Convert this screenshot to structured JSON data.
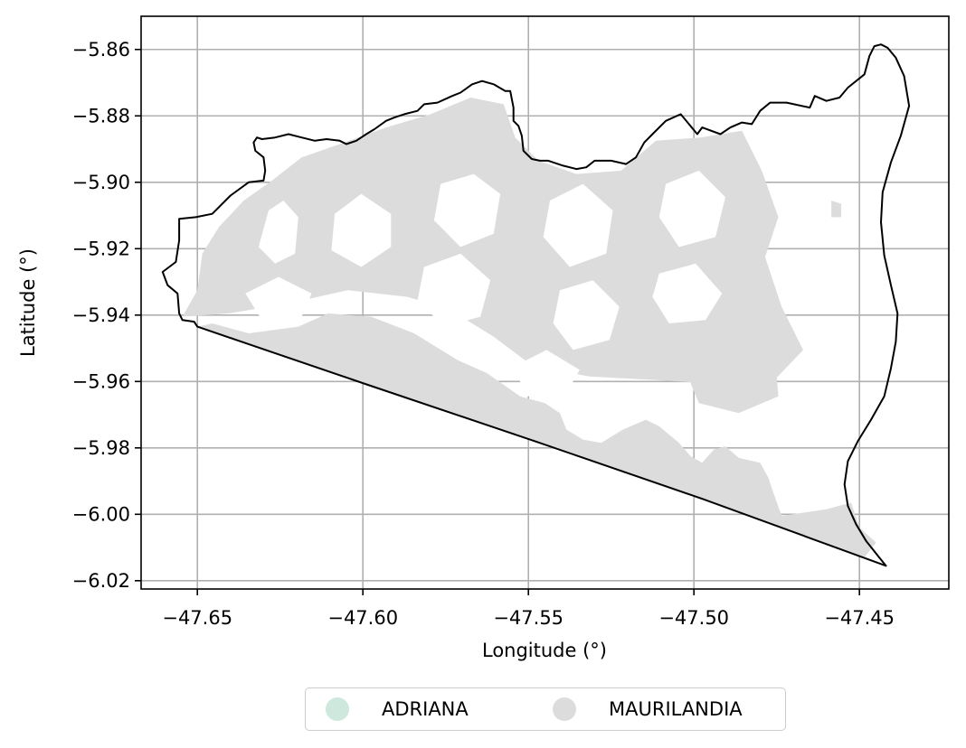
{
  "chart_data": {
    "type": "map",
    "xlabel": "Longitude (°)",
    "ylabel": "Latitude (°)",
    "xlim": [
      -47.667,
      -47.423
    ],
    "ylim": [
      -6.0225,
      -5.85
    ],
    "xticks": [
      -47.65,
      -47.6,
      -47.55,
      -47.5,
      -47.45
    ],
    "xtick_labels": [
      "−47.65",
      "−47.60",
      "−47.55",
      "−47.50",
      "−47.45"
    ],
    "yticks": [
      -5.86,
      -5.88,
      -5.9,
      -5.92,
      -5.94,
      -5.96,
      -5.98,
      -6.0,
      -6.02
    ],
    "ytick_labels": [
      "−5.86",
      "−5.88",
      "−5.90",
      "−5.92",
      "−5.94",
      "−5.96",
      "−5.98",
      "−6.00",
      "−6.02"
    ],
    "grid": true,
    "boundary_color": "#000000",
    "legend_placement": "bottom-center",
    "legend": [
      {
        "label": "ADRIANA",
        "color": "#cfe8de"
      },
      {
        "label": "MAURILANDIA",
        "color": "#dcdcdc"
      }
    ],
    "boundary": [
      [
        -47.65,
        -5.9435
      ],
      [
        -47.5985,
        -5.961
      ],
      [
        -47.548,
        -5.978
      ],
      [
        -47.497,
        -5.9955
      ],
      [
        -47.442,
        -6.0155
      ],
      [
        -47.444,
        -6.013
      ],
      [
        -47.448,
        -6.008
      ],
      [
        -47.451,
        -6.003
      ],
      [
        -47.4535,
        -5.9975
      ],
      [
        -47.4545,
        -5.991
      ],
      [
        -47.4535,
        -5.984
      ],
      [
        -47.4505,
        -5.978
      ],
      [
        -47.4465,
        -5.9715
      ],
      [
        -47.4425,
        -5.9645
      ],
      [
        -47.4405,
        -5.956
      ],
      [
        -47.439,
        -5.948
      ],
      [
        -47.4385,
        -5.9395
      ],
      [
        -47.4405,
        -5.931
      ],
      [
        -47.4425,
        -5.922
      ],
      [
        -47.4435,
        -5.912
      ],
      [
        -47.443,
        -5.903
      ],
      [
        -47.4405,
        -5.894
      ],
      [
        -47.4375,
        -5.886
      ],
      [
        -47.435,
        -5.877
      ],
      [
        -47.4365,
        -5.868
      ],
      [
        -47.439,
        -5.8625
      ],
      [
        -47.4415,
        -5.8595
      ],
      [
        -47.4435,
        -5.8585
      ],
      [
        -47.4455,
        -5.859
      ],
      [
        -47.447,
        -5.862
      ],
      [
        -47.4485,
        -5.8675
      ],
      [
        -47.4535,
        -5.8715
      ],
      [
        -47.456,
        -5.8745
      ],
      [
        -47.46,
        -5.8755
      ],
      [
        -47.4635,
        -5.874
      ],
      [
        -47.465,
        -5.8775
      ],
      [
        -47.472,
        -5.876
      ],
      [
        -47.477,
        -5.876
      ],
      [
        -47.48,
        -5.8785
      ],
      [
        -47.4825,
        -5.8825
      ],
      [
        -47.4855,
        -5.882
      ],
      [
        -47.489,
        -5.8835
      ],
      [
        -47.492,
        -5.8855
      ],
      [
        -47.4975,
        -5.8835
      ],
      [
        -47.499,
        -5.8855
      ],
      [
        -47.504,
        -5.8795
      ],
      [
        -47.5085,
        -5.8815
      ],
      [
        -47.5125,
        -5.8855
      ],
      [
        -47.515,
        -5.888
      ],
      [
        -47.5175,
        -5.8925
      ],
      [
        -47.5205,
        -5.8945
      ],
      [
        -47.525,
        -5.8935
      ],
      [
        -47.53,
        -5.8935
      ],
      [
        -47.5325,
        -5.8955
      ],
      [
        -47.5355,
        -5.896
      ],
      [
        -47.5395,
        -5.895
      ],
      [
        -47.544,
        -5.8935
      ],
      [
        -47.5465,
        -5.8935
      ],
      [
        -47.549,
        -5.893
      ],
      [
        -47.5515,
        -5.8905
      ],
      [
        -47.552,
        -5.886
      ],
      [
        -47.553,
        -5.883
      ],
      [
        -47.5545,
        -5.8815
      ],
      [
        -47.5545,
        -5.8775
      ],
      [
        -47.5555,
        -5.8725
      ],
      [
        -47.557,
        -5.8725
      ],
      [
        -47.5605,
        -5.8705
      ],
      [
        -47.564,
        -5.8695
      ],
      [
        -47.567,
        -5.8705
      ],
      [
        -47.5705,
        -5.873
      ],
      [
        -47.573,
        -5.874
      ],
      [
        -47.5775,
        -5.876
      ],
      [
        -47.5815,
        -5.8765
      ],
      [
        -47.5835,
        -5.8785
      ],
      [
        -47.5875,
        -5.8795
      ],
      [
        -47.5905,
        -5.8805
      ],
      [
        -47.593,
        -5.8815
      ],
      [
        -47.5965,
        -5.884
      ],
      [
        -47.599,
        -5.8855
      ],
      [
        -47.602,
        -5.8875
      ],
      [
        -47.605,
        -5.8885
      ],
      [
        -47.607,
        -5.8875
      ],
      [
        -47.611,
        -5.887
      ],
      [
        -47.6145,
        -5.8875
      ],
      [
        -47.6185,
        -5.8865
      ],
      [
        -47.6225,
        -5.8855
      ],
      [
        -47.6265,
        -5.8865
      ],
      [
        -47.6305,
        -5.887
      ],
      [
        -47.632,
        -5.8865
      ],
      [
        -47.633,
        -5.888
      ],
      [
        -47.6325,
        -5.8905
      ],
      [
        -47.63,
        -5.8925
      ],
      [
        -47.6295,
        -5.8965
      ],
      [
        -47.63,
        -5.8995
      ],
      [
        -47.6345,
        -5.9
      ],
      [
        -47.64,
        -5.904
      ],
      [
        -47.6455,
        -5.9095
      ],
      [
        -47.6505,
        -5.9105
      ],
      [
        -47.6555,
        -5.911
      ],
      [
        -47.6555,
        -5.9175
      ],
      [
        -47.6565,
        -5.924
      ],
      [
        -47.6605,
        -5.927
      ],
      [
        -47.659,
        -5.931
      ],
      [
        -47.656,
        -5.9335
      ],
      [
        -47.6555,
        -5.9395
      ],
      [
        -47.6545,
        -5.9415
      ],
      [
        -47.651,
        -5.942
      ]
    ],
    "shaded_regions": [
      {
        "label": "MAURILANDIA",
        "polygons": [
          [
            [
              -47.65,
              -5.9435
            ],
            [
              -47.5985,
              -5.961
            ],
            [
              -47.548,
              -5.978
            ],
            [
              -47.497,
              -5.9955
            ],
            [
              -47.4485,
              -6.013
            ],
            [
              -47.445,
              -6.0085
            ],
            [
              -47.45,
              -6.004
            ],
            [
              -47.4525,
              -5.9965
            ],
            [
              -47.46,
              -5.9985
            ],
            [
              -47.4735,
              -6.0005
            ],
            [
              -47.476,
              -5.9935
            ],
            [
              -47.4775,
              -5.989
            ],
            [
              -47.48,
              -5.9845
            ],
            [
              -47.4865,
              -5.983
            ],
            [
              -47.4905,
              -5.9795
            ],
            [
              -47.494,
              -5.9805
            ],
            [
              -47.4975,
              -5.9845
            ],
            [
              -47.501,
              -5.9825
            ],
            [
              -47.5045,
              -5.9785
            ],
            [
              -47.5105,
              -5.9735
            ],
            [
              -47.5145,
              -5.9715
            ],
            [
              -47.5215,
              -5.9745
            ],
            [
              -47.528,
              -5.9785
            ],
            [
              -47.5335,
              -5.9775
            ],
            [
              -47.5385,
              -5.9745
            ],
            [
              -47.5405,
              -5.9695
            ],
            [
              -47.545,
              -5.9665
            ],
            [
              -47.5525,
              -5.9645
            ],
            [
              -47.5625,
              -5.9575
            ],
            [
              -47.5715,
              -5.9535
            ],
            [
              -47.5845,
              -5.9455
            ],
            [
              -47.5975,
              -5.9405
            ],
            [
              -47.6105,
              -5.9395
            ],
            [
              -47.6195,
              -5.9435
            ],
            [
              -47.6345,
              -5.9455
            ],
            [
              -47.6455,
              -5.9425
            ]
          ],
          [
            [
              -47.6545,
              -5.9405
            ],
            [
              -47.65,
              -5.9325
            ],
            [
              -47.6485,
              -5.9215
            ],
            [
              -47.6435,
              -5.9135
            ],
            [
              -47.636,
              -5.9055
            ],
            [
              -47.6275,
              -5.8995
            ],
            [
              -47.6185,
              -5.8925
            ],
            [
              -47.607,
              -5.8885
            ],
            [
              -47.593,
              -5.8835
            ],
            [
              -47.5795,
              -5.8795
            ],
            [
              -47.5675,
              -5.8745
            ],
            [
              -47.5575,
              -5.8765
            ],
            [
              -47.554,
              -5.8865
            ],
            [
              -47.547,
              -5.8935
            ],
            [
              -47.5355,
              -5.8975
            ],
            [
              -47.522,
              -5.8965
            ],
            [
              -47.5115,
              -5.8875
            ],
            [
              -47.498,
              -5.8865
            ],
            [
              -47.4855,
              -5.8845
            ],
            [
              -47.4795,
              -5.8965
            ],
            [
              -47.4745,
              -5.9105
            ],
            [
              -47.4785,
              -5.9225
            ],
            [
              -47.4735,
              -5.9375
            ],
            [
              -47.467,
              -5.9505
            ],
            [
              -47.4785,
              -5.9625
            ],
            [
              -47.4965,
              -5.9605
            ],
            [
              -47.5125,
              -5.9595
            ],
            [
              -47.5315,
              -5.9585
            ],
            [
              -47.5485,
              -5.9555
            ],
            [
              -47.5605,
              -5.9465
            ],
            [
              -47.5735,
              -5.9385
            ],
            [
              -47.5865,
              -5.9345
            ],
            [
              -47.6045,
              -5.9325
            ],
            [
              -47.6225,
              -5.9365
            ],
            [
              -47.6405,
              -5.9395
            ]
          ],
          [
            [
              -47.4965,
              -5.9395
            ],
            [
              -47.4845,
              -5.9445
            ],
            [
              -47.4755,
              -5.9525
            ],
            [
              -47.4745,
              -5.9645
            ],
            [
              -47.4865,
              -5.9695
            ],
            [
              -47.4985,
              -5.9665
            ],
            [
              -47.5035,
              -5.9545
            ],
            [
              -47.5025,
              -5.9445
            ]
          ],
          [
            [
              -47.4585,
              -5.9055
            ],
            [
              -47.4555,
              -5.9065
            ],
            [
              -47.4555,
              -5.9105
            ],
            [
              -47.4585,
              -5.9105
            ]
          ]
        ]
      },
      {
        "label": "MAURILANDIA",
        "holes": [
          [
            [
              -47.6285,
              -5.9085
            ],
            [
              -47.624,
              -5.9055
            ],
            [
              -47.6195,
              -5.9105
            ],
            [
              -47.6205,
              -5.9215
            ],
            [
              -47.6265,
              -5.9245
            ],
            [
              -47.6315,
              -5.9195
            ]
          ],
          [
            [
              -47.6085,
              -5.9095
            ],
            [
              -47.6005,
              -5.9035
            ],
            [
              -47.5915,
              -5.9095
            ],
            [
              -47.5915,
              -5.9195
            ],
            [
              -47.6005,
              -5.9255
            ],
            [
              -47.6095,
              -5.9205
            ]
          ],
          [
            [
              -47.5765,
              -5.9005
            ],
            [
              -47.5665,
              -5.8975
            ],
            [
              -47.5585,
              -5.9035
            ],
            [
              -47.5605,
              -5.9155
            ],
            [
              -47.5705,
              -5.9195
            ],
            [
              -47.5785,
              -5.9115
            ]
          ],
          [
            [
              -47.5815,
              -5.9255
            ],
            [
              -47.5705,
              -5.9215
            ],
            [
              -47.5615,
              -5.9295
            ],
            [
              -47.5645,
              -5.9405
            ],
            [
              -47.5755,
              -5.9435
            ],
            [
              -47.5835,
              -5.9355
            ]
          ],
          [
            [
              -47.5435,
              -5.9055
            ],
            [
              -47.5335,
              -5.9005
            ],
            [
              -47.5245,
              -5.9085
            ],
            [
              -47.5265,
              -5.9215
            ],
            [
              -47.5375,
              -5.9255
            ],
            [
              -47.5455,
              -5.9165
            ]
          ],
          [
            [
              -47.5405,
              -5.9325
            ],
            [
              -47.5305,
              -5.9295
            ],
            [
              -47.5225,
              -5.9375
            ],
            [
              -47.5255,
              -5.9475
            ],
            [
              -47.5365,
              -5.9505
            ],
            [
              -47.5425,
              -5.9425
            ]
          ],
          [
            [
              -47.5085,
              -5.9005
            ],
            [
              -47.4985,
              -5.8965
            ],
            [
              -47.4905,
              -5.9045
            ],
            [
              -47.4935,
              -5.9165
            ],
            [
              -47.5045,
              -5.9195
            ],
            [
              -47.5105,
              -5.9105
            ]
          ],
          [
            [
              -47.5105,
              -5.9275
            ],
            [
              -47.4995,
              -5.9245
            ],
            [
              -47.4915,
              -5.9335
            ],
            [
              -47.4965,
              -5.9415
            ],
            [
              -47.5075,
              -5.9425
            ],
            [
              -47.5125,
              -5.9345
            ]
          ],
          [
            [
              -47.6355,
              -5.9335
            ],
            [
              -47.6255,
              -5.9285
            ],
            [
              -47.6155,
              -5.9335
            ],
            [
              -47.6185,
              -5.9405
            ],
            [
              -47.6305,
              -5.9415
            ]
          ],
          [
            [
              -47.5545,
              -5.9555
            ],
            [
              -47.5445,
              -5.9505
            ],
            [
              -47.5345,
              -5.9565
            ],
            [
              -47.5385,
              -5.9635
            ],
            [
              -47.5505,
              -5.9645
            ]
          ]
        ]
      }
    ]
  },
  "legend": {
    "items": [
      {
        "label": "ADRIANA",
        "color": "#cfe8de"
      },
      {
        "label": "MAURILANDIA",
        "color": "#dcdcdc"
      }
    ]
  }
}
